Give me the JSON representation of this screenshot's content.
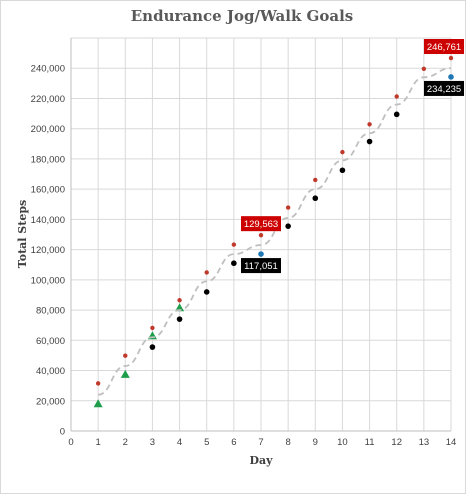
{
  "chart_data": {
    "type": "scatter",
    "title": "Endurance Jog/Walk Goals",
    "xlabel": "Day",
    "ylabel": "Total Steps",
    "xlim": [
      0,
      14
    ],
    "ylim": [
      0,
      260000
    ],
    "x_ticks": [
      "0",
      "1",
      "2",
      "3",
      "4",
      "5",
      "6",
      "7",
      "8",
      "9",
      "10",
      "11",
      "12",
      "13",
      "14"
    ],
    "y_ticks": [
      "0",
      "20,000",
      "40,000",
      "60,000",
      "80,000",
      "100,000",
      "120,000",
      "140,000",
      "160,000",
      "180,000",
      "200,000",
      "220,000",
      "240,000"
    ],
    "grid": true,
    "series": [
      {
        "color": "#c0392b",
        "marker": "small-circle",
        "x": [
          1,
          2,
          3,
          4,
          5,
          6,
          7,
          8,
          9,
          10,
          11,
          12,
          13,
          14
        ],
        "y": [
          31500,
          49800,
          68200,
          86500,
          104900,
          123300,
          129563,
          147800,
          166100,
          184500,
          202900,
          221300,
          239600,
          246761
        ]
      },
      {
        "color": "#1e9e4a",
        "marker": "triangle",
        "x": [
          1,
          2,
          3,
          4
        ],
        "y": [
          18000,
          37500,
          63000,
          81500
        ]
      },
      {
        "color": "#000000",
        "marker": "circle",
        "x": [
          3,
          4,
          5,
          6,
          8,
          9,
          10,
          11,
          12
        ],
        "y": [
          55500,
          74000,
          92000,
          111000,
          135500,
          154000,
          172500,
          191500,
          209500
        ]
      },
      {
        "color": "#1f77b4",
        "marker": "circle",
        "x": [
          7,
          14
        ],
        "y": [
          117051,
          234235
        ]
      },
      {
        "color": "#bfbfbf",
        "marker": "dashed-line",
        "x": [
          1,
          2,
          3,
          4,
          5,
          6,
          7,
          8,
          9,
          10,
          11,
          12,
          13,
          14
        ],
        "y": [
          24000,
          43000,
          62000,
          80000,
          99000,
          117000,
          123000,
          141000,
          160000,
          179000,
          197000,
          216000,
          234000,
          240000
        ]
      }
    ],
    "callouts": [
      {
        "text": "129,563",
        "x": 7,
        "y": 129563,
        "color": "#cc0000",
        "placement": "above"
      },
      {
        "text": "117,051",
        "x": 7,
        "y": 117051,
        "color": "#000000",
        "placement": "below"
      },
      {
        "text": "246,761",
        "x": 14,
        "y": 246761,
        "color": "#cc0000",
        "placement": "above"
      },
      {
        "text": "234,235",
        "x": 14,
        "y": 234235,
        "color": "#000000",
        "placement": "below"
      }
    ]
  }
}
